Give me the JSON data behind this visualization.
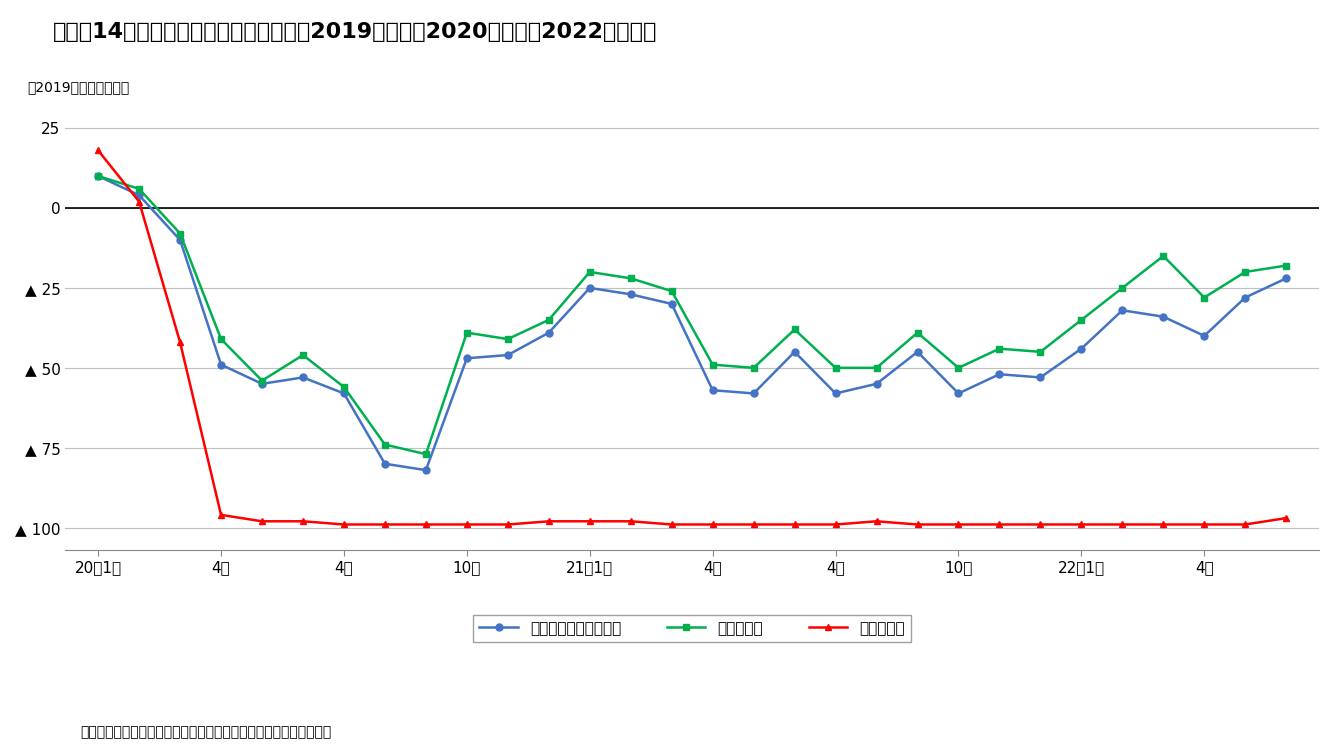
{
  "title": "図表－14　延べ宿泊者数の推移（月次、2019年対比、2020年１月～2022年６月）",
  "ylabel": "（2019年同月比、％）",
  "source_note": "（出所）「宿泊旅行統計調査」をもとにニッセイ基礎研究所が作成",
  "ytick_labels": [
    "25",
    "0",
    "▲ 25",
    "▲ 50",
    "▲ 75",
    "▲ 100"
  ],
  "ytick_values": [
    25,
    0,
    -25,
    -50,
    -75,
    -100
  ],
  "ylim": [
    -107,
    30
  ],
  "xtick_positions": [
    0,
    3,
    6,
    9,
    12,
    15,
    18,
    21,
    24,
    27
  ],
  "xtick_labels": [
    "20年1月",
    "4月",
    "4月",
    "10月",
    "21年1月",
    "4月",
    "4月",
    "10月",
    "22年1月",
    "4月"
  ],
  "total": [
    10,
    4,
    -10,
    -49,
    -55,
    -53,
    -58,
    -80,
    -82,
    -47,
    -46,
    -39,
    -25,
    -27,
    -30,
    -57,
    -58,
    -45,
    -58,
    -55,
    -45,
    -58,
    -52,
    -53,
    -44,
    -32,
    -34,
    -40,
    -28,
    -22
  ],
  "domestic": [
    10,
    6,
    -8,
    -41,
    -54,
    -46,
    -56,
    -74,
    -77,
    -39,
    -41,
    -35,
    -20,
    -22,
    -26,
    -49,
    -50,
    -38,
    -50,
    -50,
    -39,
    -50,
    -44,
    -45,
    -35,
    -25,
    -15,
    -28,
    -20,
    -18
  ],
  "foreign": [
    18,
    2,
    -42,
    -96,
    -98,
    -98,
    -99,
    -99,
    -99,
    -99,
    -99,
    -98,
    -98,
    -98,
    -99,
    -99,
    -99,
    -99,
    -99,
    -98,
    -99,
    -99,
    -99,
    -99,
    -99,
    -99,
    -99,
    -99,
    -99,
    -97
  ],
  "legend_labels": [
    "延べ宿泊者数（全体）",
    "うち日本人",
    "うち外国人"
  ],
  "line_colors": [
    "#4472C4",
    "#00B050",
    "#FF0000"
  ],
  "line_markers": [
    "o",
    "s",
    "^"
  ],
  "background_color": "#FFFFFF",
  "grid_color": "#C0C0C0"
}
